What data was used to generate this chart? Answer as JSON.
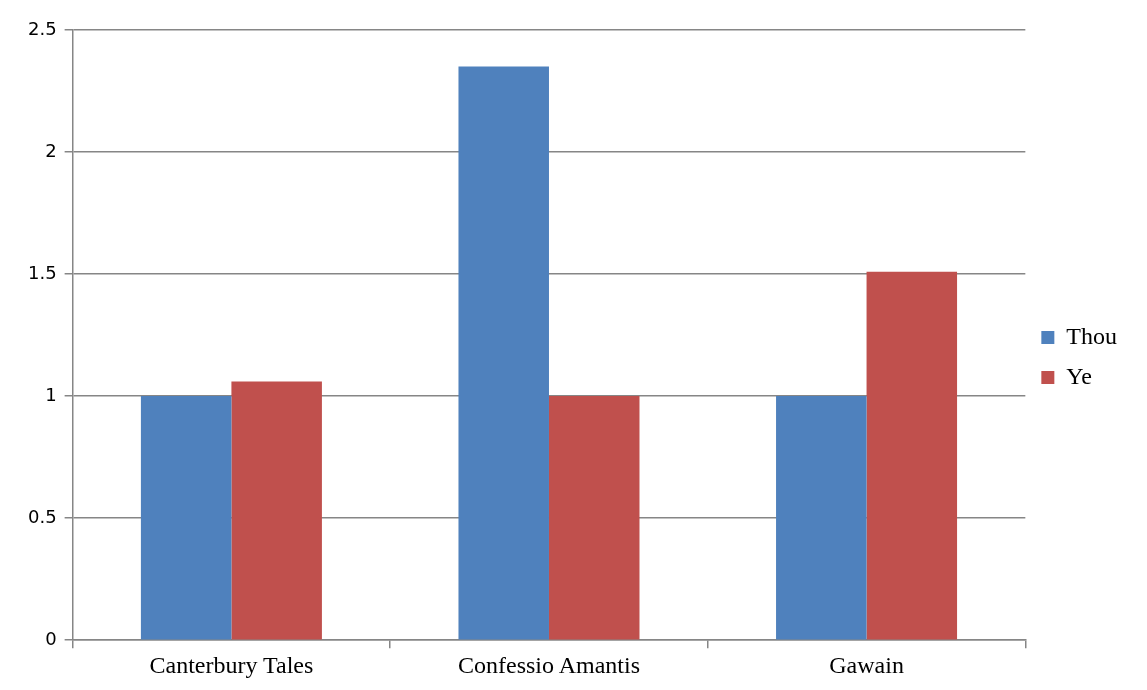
{
  "chart_data": {
    "type": "bar",
    "categories": [
      "Canterbury Tales",
      "Confessio Amantis",
      "Gawain"
    ],
    "series": [
      {
        "name": "Thou",
        "color": "#4f81bd",
        "values": [
          1,
          2.35,
          1
        ]
      },
      {
        "name": "Ye",
        "color": "#c0504d",
        "values": [
          1.06,
          1,
          1.51
        ]
      }
    ],
    "ylim": [
      0,
      2.5
    ],
    "yticks": [
      0,
      0.5,
      1,
      1.5,
      2,
      2.5
    ],
    "grid": "y",
    "legend": "right"
  }
}
